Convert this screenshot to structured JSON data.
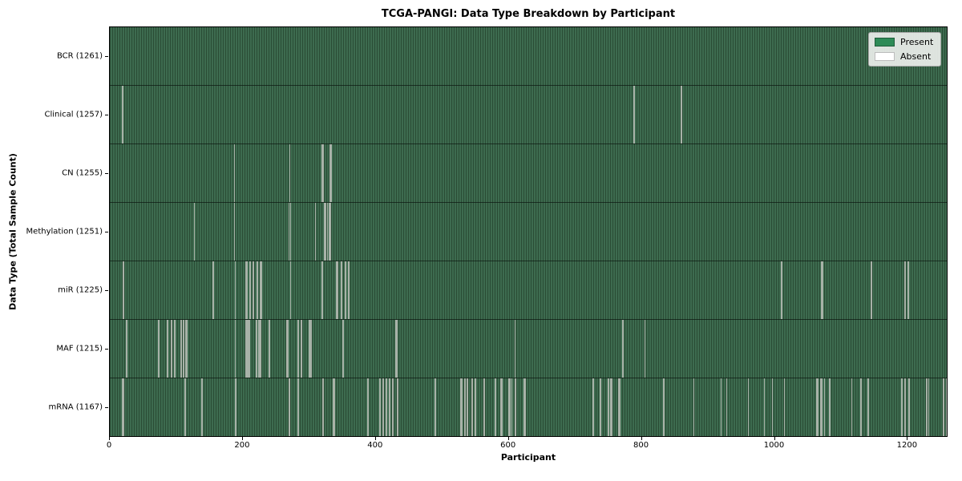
{
  "chart_data": {
    "type": "heatmap",
    "title": "TCGA-PANGI: Data Type Breakdown by Participant",
    "xlabel": "Participant",
    "ylabel": "Data Type (Total Sample Count)",
    "x_range": [
      0,
      1261
    ],
    "x_ticks": [
      0,
      200,
      400,
      600,
      800,
      1000,
      1200
    ],
    "legend_position": "upper right",
    "legend_items": [
      {
        "label": "Present",
        "color": "#2e8b57",
        "border": "#1f5e3b"
      },
      {
        "label": "Absent",
        "color": "#ffffff",
        "border": "#bcbcbc"
      }
    ],
    "colors": {
      "present_stripe_light": "#3d6b4f",
      "present_stripe_dark": "#2a4c35",
      "absent_line": "#a8b2a8"
    },
    "rows": [
      {
        "label": "BCR (1261)",
        "data_type": "BCR",
        "present_count": 1261,
        "absent_participants": []
      },
      {
        "label": "Clinical (1257)",
        "data_type": "Clinical",
        "present_count": 1257,
        "absent_participants": [
          18,
          19,
          788,
          859
        ]
      },
      {
        "label": "CN (1255)",
        "data_type": "CN",
        "present_count": 1255,
        "absent_participants": [
          187,
          270,
          319,
          321,
          331,
          333
        ]
      },
      {
        "label": "Methylation (1251)",
        "data_type": "Methylation",
        "present_count": 1251,
        "absent_participants": [
          127,
          187,
          269,
          271,
          309,
          322,
          324,
          327,
          329,
          331
        ]
      },
      {
        "label": "miR (1225)",
        "data_type": "miR",
        "present_count": 1225,
        "absent_participants": [
          20,
          155,
          188,
          204,
          205,
          206,
          210,
          211,
          215,
          216,
          221,
          222,
          226,
          227,
          228,
          271,
          319,
          340,
          341,
          342,
          347,
          348,
          353,
          354,
          358,
          359,
          1009,
          1010,
          1070,
          1071,
          1144,
          1145,
          1195,
          1196,
          1200,
          1201
        ]
      },
      {
        "label": "MAF (1215)",
        "data_type": "MAF",
        "present_count": 1215,
        "absent_participants": [
          25,
          73,
          74,
          86,
          87,
          92,
          93,
          97,
          106,
          107,
          110,
          111,
          114,
          115,
          188,
          204,
          205,
          206,
          207,
          209,
          210,
          220,
          221,
          223,
          224,
          225,
          226,
          239,
          240,
          266,
          267,
          282,
          283,
          287,
          288,
          299,
          300,
          301,
          302,
          350,
          351,
          430,
          431,
          609,
          771,
          804
        ]
      },
      {
        "label": "mRNA (1167)",
        "data_type": "mRNA",
        "present_count": 1167,
        "absent_participants": [
          19,
          20,
          112,
          113,
          138,
          139,
          188,
          189,
          269,
          270,
          282,
          283,
          320,
          321,
          336,
          337,
          387,
          388,
          405,
          406,
          410,
          411,
          415,
          416,
          420,
          421,
          425,
          432,
          433,
          488,
          489,
          527,
          528,
          529,
          533,
          534,
          537,
          544,
          545,
          549,
          562,
          563,
          579,
          580,
          588,
          589,
          600,
          601,
          604,
          609,
          610,
          623,
          624,
          726,
          727,
          737,
          738,
          749,
          750,
          753,
          754,
          765,
          766,
          832,
          833,
          878,
          919,
          927,
          960,
          984,
          996,
          1014,
          1063,
          1064,
          1068,
          1070,
          1074,
          1082,
          1115,
          1129,
          1140,
          1190,
          1191,
          1195,
          1196,
          1201,
          1202,
          1227,
          1228,
          1231,
          1253,
          1254,
          1258,
          1259
        ]
      }
    ]
  }
}
